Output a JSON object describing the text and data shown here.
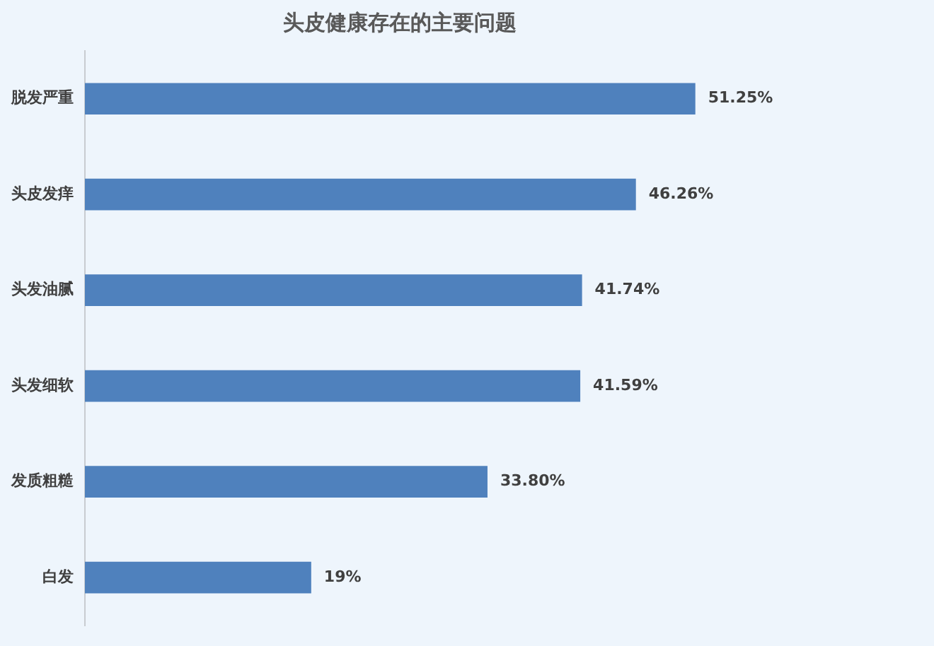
{
  "chart_data": {
    "type": "bar",
    "orientation": "horizontal",
    "title": "头皮健康存在的主要问题",
    "categories": [
      "脱发严重",
      "头皮发痒",
      "头发油腻",
      "头发细软",
      "发质粗糙",
      "白发"
    ],
    "values": [
      51.25,
      46.26,
      41.74,
      41.59,
      33.8,
      19
    ],
    "value_labels": [
      "51.25%",
      "46.26%",
      "41.74%",
      "41.59%",
      "33.80%",
      "19%"
    ],
    "color": "#4f81bd",
    "legend": false
  }
}
